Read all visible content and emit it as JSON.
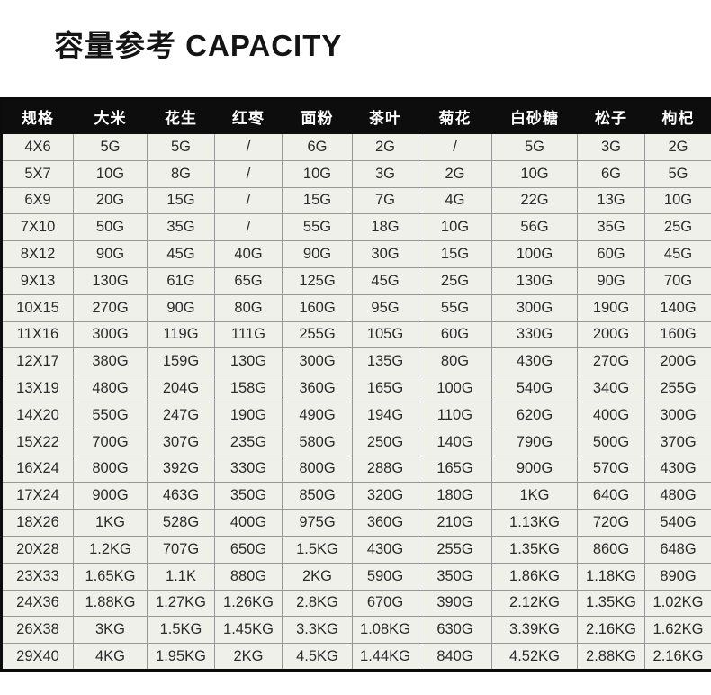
{
  "title": "容量参考 CAPACITY",
  "colors": {
    "header_bg": "#0d0d0d",
    "header_text": "#ffffff",
    "cell_bg": "#f0f0eb",
    "cell_text": "#2b2b2b",
    "grid_border": "#979797",
    "outer_border": "#0b0b0b",
    "page_bg": "#ffffff",
    "title_text": "#141414"
  },
  "table": {
    "headers": [
      "规格",
      "大米",
      "花生",
      "红枣",
      "面粉",
      "茶叶",
      "菊花",
      "白砂糖",
      "松子",
      "枸杞"
    ],
    "rows": [
      [
        "4X6",
        "5G",
        "5G",
        "/",
        "6G",
        "2G",
        "/",
        "5G",
        "3G",
        "2G"
      ],
      [
        "5X7",
        "10G",
        "8G",
        "/",
        "10G",
        "3G",
        "2G",
        "10G",
        "6G",
        "5G"
      ],
      [
        "6X9",
        "20G",
        "15G",
        "/",
        "15G",
        "7G",
        "4G",
        "22G",
        "13G",
        "10G"
      ],
      [
        "7X10",
        "50G",
        "35G",
        "/",
        "55G",
        "18G",
        "10G",
        "56G",
        "35G",
        "25G"
      ],
      [
        "8X12",
        "90G",
        "45G",
        "40G",
        "90G",
        "30G",
        "15G",
        "100G",
        "60G",
        "45G"
      ],
      [
        "9X13",
        "130G",
        "61G",
        "65G",
        "125G",
        "45G",
        "25G",
        "130G",
        "90G",
        "70G"
      ],
      [
        "10X15",
        "270G",
        "90G",
        "80G",
        "160G",
        "95G",
        "55G",
        "300G",
        "190G",
        "140G"
      ],
      [
        "11X16",
        "300G",
        "119G",
        "111G",
        "255G",
        "105G",
        "60G",
        "330G",
        "200G",
        "160G"
      ],
      [
        "12X17",
        "380G",
        "159G",
        "130G",
        "300G",
        "135G",
        "80G",
        "430G",
        "270G",
        "200G"
      ],
      [
        "13X19",
        "480G",
        "204G",
        "158G",
        "360G",
        "165G",
        "100G",
        "540G",
        "340G",
        "255G"
      ],
      [
        "14X20",
        "550G",
        "247G",
        "190G",
        "490G",
        "194G",
        "110G",
        "620G",
        "400G",
        "300G"
      ],
      [
        "15X22",
        "700G",
        "307G",
        "235G",
        "580G",
        "250G",
        "140G",
        "790G",
        "500G",
        "370G"
      ],
      [
        "16X24",
        "800G",
        "392G",
        "330G",
        "800G",
        "288G",
        "165G",
        "900G",
        "570G",
        "430G"
      ],
      [
        "17X24",
        "900G",
        "463G",
        "350G",
        "850G",
        "320G",
        "180G",
        "1KG",
        "640G",
        "480G"
      ],
      [
        "18X26",
        "1KG",
        "528G",
        "400G",
        "975G",
        "360G",
        "210G",
        "1.13KG",
        "720G",
        "540G"
      ],
      [
        "20X28",
        "1.2KG",
        "707G",
        "650G",
        "1.5KG",
        "430G",
        "255G",
        "1.35KG",
        "860G",
        "648G"
      ],
      [
        "23X33",
        "1.65KG",
        "1.1K",
        "880G",
        "2KG",
        "590G",
        "350G",
        "1.86KG",
        "1.18KG",
        "890G"
      ],
      [
        "24X36",
        "1.88KG",
        "1.27KG",
        "1.26KG",
        "2.8KG",
        "670G",
        "390G",
        "2.12KG",
        "1.35KG",
        "1.02KG"
      ],
      [
        "26X38",
        "3KG",
        "1.5KG",
        "1.45KG",
        "3.3KG",
        "1.08KG",
        "630G",
        "3.39KG",
        "2.16KG",
        "1.62KG"
      ],
      [
        "29X40",
        "4KG",
        "1.95KG",
        "2KG",
        "4.5KG",
        "1.44KG",
        "840G",
        "4.52KG",
        "2.88KG",
        "2.16KG"
      ]
    ]
  }
}
